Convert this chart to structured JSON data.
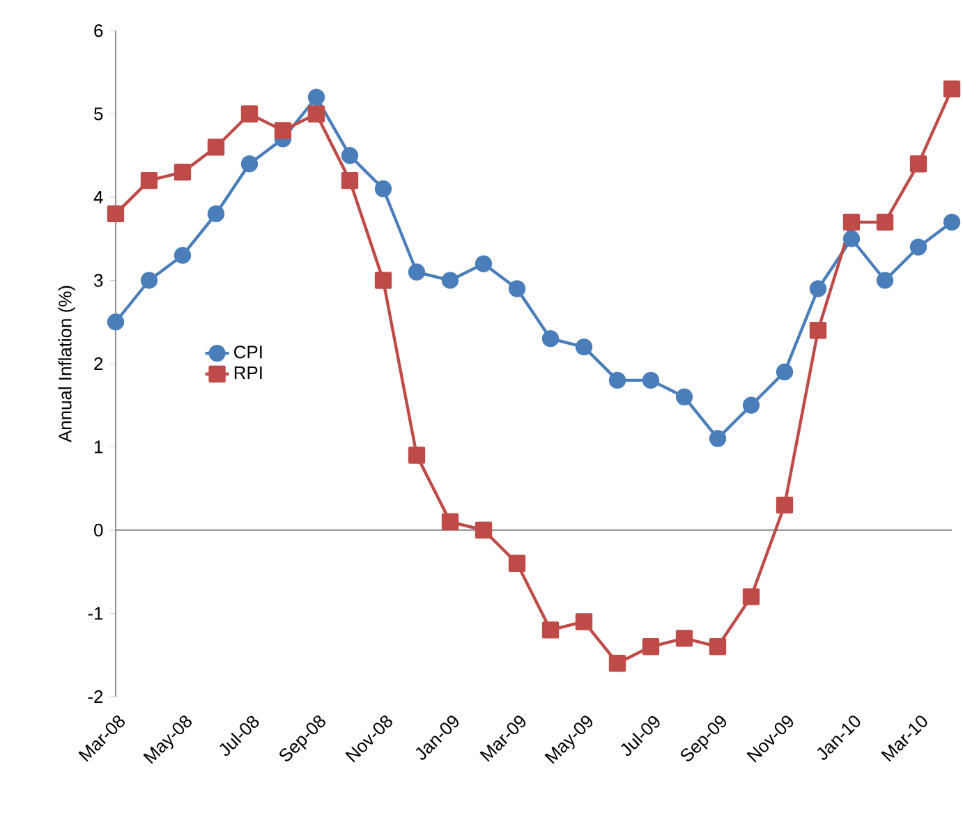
{
  "chart_data": {
    "type": "line",
    "ylabel": "Annual Inflation (%)",
    "categories": [
      "Mar-08",
      null,
      "May-08",
      null,
      "Jul-08",
      null,
      "Sep-08",
      null,
      "Nov-08",
      null,
      "Jan-09",
      null,
      "Mar-09",
      null,
      "May-09",
      null,
      "Jul-09",
      null,
      "Sep-09",
      null,
      "Nov-09",
      null,
      "Jan-10",
      null,
      "Mar-10",
      null
    ],
    "series": [
      {
        "name": "CPI",
        "color": "#4a7ebb",
        "marker": "circle",
        "values": [
          2.5,
          3.0,
          3.3,
          3.8,
          4.4,
          4.7,
          5.2,
          4.5,
          4.1,
          3.1,
          3.0,
          3.2,
          2.9,
          2.3,
          2.2,
          1.8,
          1.8,
          1.6,
          1.1,
          1.5,
          1.9,
          2.9,
          3.5,
          3.0,
          3.4,
          3.7
        ]
      },
      {
        "name": "RPI",
        "color": "#be4b48",
        "marker": "square",
        "values": [
          3.8,
          4.2,
          4.3,
          4.6,
          5.0,
          4.8,
          5.0,
          4.2,
          3.0,
          0.9,
          0.1,
          0.0,
          -0.4,
          -1.2,
          -1.1,
          -1.6,
          -1.4,
          -1.3,
          -1.4,
          -0.8,
          0.3,
          2.4,
          3.7,
          3.7,
          4.4,
          5.3
        ]
      }
    ],
    "ylim": [
      -2,
      6
    ],
    "yticks": [
      -2,
      -1,
      0,
      1,
      2,
      3,
      4,
      5,
      6
    ],
    "legend": "left",
    "line_style": "solid"
  }
}
